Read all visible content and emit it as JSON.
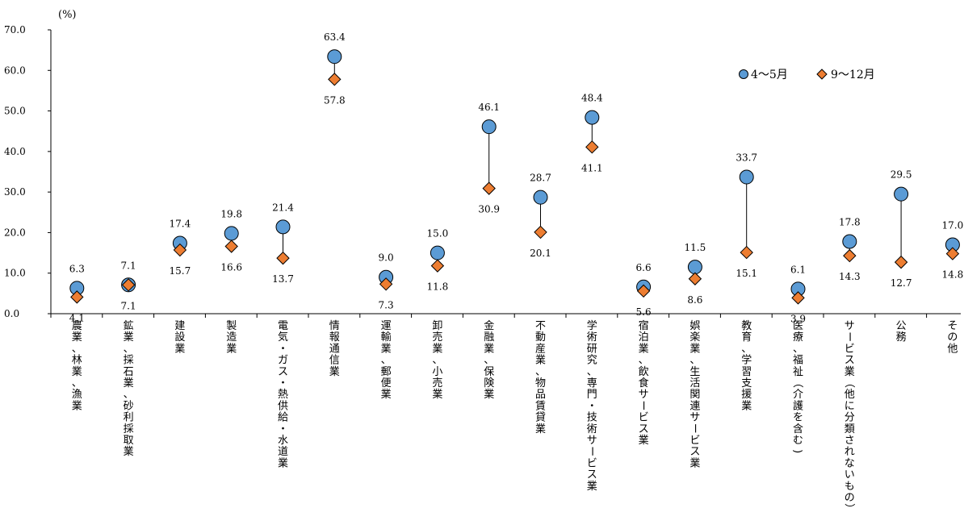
{
  "chart_data": {
    "type": "scatter",
    "unit_label": "(%)",
    "categories": [
      "農業、林業、漁業",
      "鉱業、採石業、砂利採取業",
      "建設業",
      "製造業",
      "電気・ガス・熱供給・水道業",
      "情報通信業",
      "運輸業、郵便業",
      "卸売業、小売業",
      "金融業、保険業",
      "不動産業、物品賃貸業",
      "学術研究、専門・技術サービス業",
      "宿泊業、飲食サービス業",
      "娯楽業、生活関連サービス業",
      "教育、学習支援業",
      "医療、福祉（介護を含む)",
      "サービス業（他に分類されないもの）",
      "公務",
      "その他"
    ],
    "series": [
      {
        "name": "4～5月",
        "marker": "circle",
        "color": "#5b9bd5",
        "values": [
          6.3,
          7.1,
          17.4,
          19.8,
          21.4,
          63.4,
          9.0,
          15.0,
          46.1,
          28.7,
          48.4,
          6.6,
          11.5,
          33.7,
          6.1,
          17.8,
          29.5,
          17.0
        ],
        "labels": [
          "6.3",
          "7.1",
          "17.4",
          "19.8",
          "21.4",
          "63.4",
          "9.0",
          "15.0",
          "46.1",
          "28.7",
          "48.4",
          "6.6",
          "11.5",
          "33.7",
          "6.1",
          "17.8",
          "29.5",
          "17.0"
        ]
      },
      {
        "name": "9～12月",
        "marker": "diamond",
        "color": "#ed7d31",
        "values": [
          4.1,
          7.1,
          15.7,
          16.6,
          13.7,
          57.8,
          7.3,
          11.8,
          30.9,
          20.1,
          41.1,
          5.6,
          8.6,
          15.1,
          3.9,
          14.3,
          12.7,
          14.8
        ],
        "labels": [
          "4.1",
          "7.1",
          "15.7",
          "16.6",
          "13.7",
          "57.8",
          "7.3",
          "11.8",
          "30.9",
          "20.1",
          "41.1",
          "5.6",
          "8.6",
          "15.1",
          "3.9",
          "14.3",
          "12.7",
          "14.8"
        ]
      }
    ],
    "y_ticks": [
      "70.0",
      "60.0",
      "50.0",
      "40.0",
      "30.0",
      "20.0",
      "10.0",
      "0.0"
    ],
    "y_tick_values": [
      70,
      60,
      50,
      40,
      30,
      20,
      10,
      0
    ],
    "ylim": [
      0,
      70
    ],
    "legend_position": "top-right",
    "grid": false
  }
}
